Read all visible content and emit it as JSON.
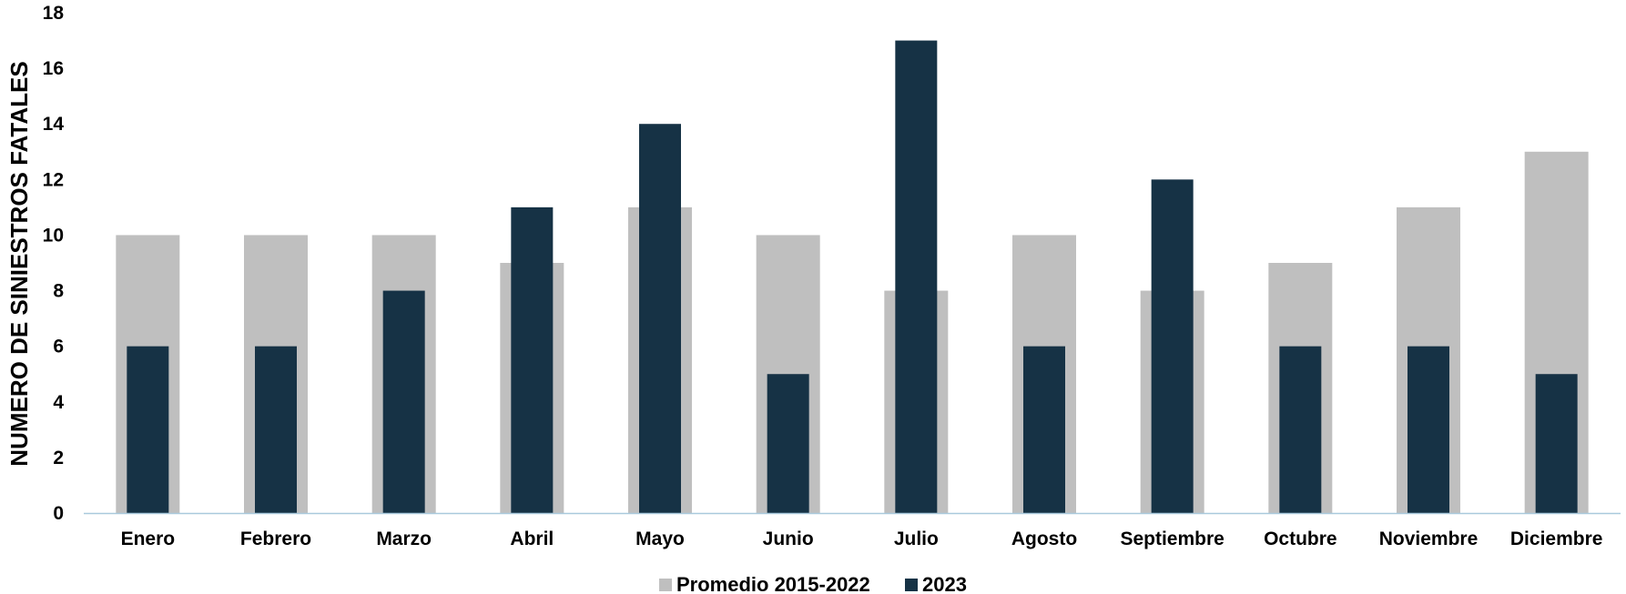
{
  "chart_data": {
    "type": "bar",
    "title": "",
    "xlabel": "",
    "ylabel": "NUMERO DE SINIESTROS FATALES",
    "ylim": [
      0,
      18
    ],
    "y_ticks": [
      0,
      2,
      4,
      6,
      8,
      10,
      12,
      14,
      16,
      18
    ],
    "grid": false,
    "legend_position": "bottom-center",
    "categories": [
      "Enero",
      "Febrero",
      "Marzo",
      "Abril",
      "Mayo",
      "Junio",
      "Julio",
      "Agosto",
      "Septiembre",
      "Octubre",
      "Noviembre",
      "Diciembre"
    ],
    "series": [
      {
        "name": "Promedio 2015-2022",
        "color": "#bfbfbf",
        "values": [
          10,
          10,
          10,
          9,
          11,
          10,
          8,
          10,
          8,
          9,
          11,
          13
        ]
      },
      {
        "name": "2023",
        "color": "#163245",
        "values": [
          6,
          6,
          8,
          11,
          14,
          5,
          17,
          6,
          12,
          6,
          6,
          5
        ]
      }
    ],
    "axis_line_color": "#a9c9dc"
  }
}
